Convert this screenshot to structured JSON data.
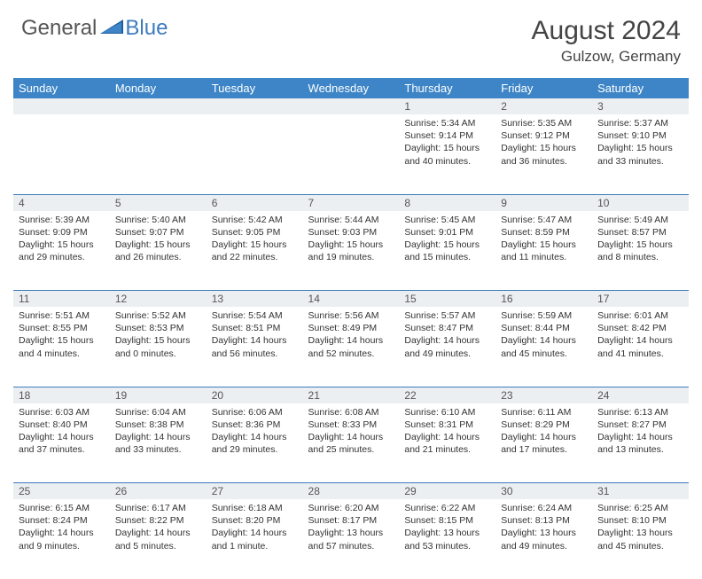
{
  "logo": {
    "general": "General",
    "blue": "Blue"
  },
  "title": "August 2024",
  "location": "Gulzow, Germany",
  "colors": {
    "header_bg": "#3d85c6",
    "header_text": "#ffffff",
    "daynum_bg": "#eceff1",
    "rule": "#3d7bbf",
    "logo_blue": "#3d7bbf",
    "text": "#333333"
  },
  "weekdays": [
    "Sunday",
    "Monday",
    "Tuesday",
    "Wednesday",
    "Thursday",
    "Friday",
    "Saturday"
  ],
  "weeks": [
    {
      "nums": [
        "",
        "",
        "",
        "",
        "1",
        "2",
        "3"
      ],
      "cells": [
        {
          "sunrise": "",
          "sunset": "",
          "daylight": ""
        },
        {
          "sunrise": "",
          "sunset": "",
          "daylight": ""
        },
        {
          "sunrise": "",
          "sunset": "",
          "daylight": ""
        },
        {
          "sunrise": "",
          "sunset": "",
          "daylight": ""
        },
        {
          "sunrise": "Sunrise: 5:34 AM",
          "sunset": "Sunset: 9:14 PM",
          "daylight": "Daylight: 15 hours and 40 minutes."
        },
        {
          "sunrise": "Sunrise: 5:35 AM",
          "sunset": "Sunset: 9:12 PM",
          "daylight": "Daylight: 15 hours and 36 minutes."
        },
        {
          "sunrise": "Sunrise: 5:37 AM",
          "sunset": "Sunset: 9:10 PM",
          "daylight": "Daylight: 15 hours and 33 minutes."
        }
      ]
    },
    {
      "nums": [
        "4",
        "5",
        "6",
        "7",
        "8",
        "9",
        "10"
      ],
      "cells": [
        {
          "sunrise": "Sunrise: 5:39 AM",
          "sunset": "Sunset: 9:09 PM",
          "daylight": "Daylight: 15 hours and 29 minutes."
        },
        {
          "sunrise": "Sunrise: 5:40 AM",
          "sunset": "Sunset: 9:07 PM",
          "daylight": "Daylight: 15 hours and 26 minutes."
        },
        {
          "sunrise": "Sunrise: 5:42 AM",
          "sunset": "Sunset: 9:05 PM",
          "daylight": "Daylight: 15 hours and 22 minutes."
        },
        {
          "sunrise": "Sunrise: 5:44 AM",
          "sunset": "Sunset: 9:03 PM",
          "daylight": "Daylight: 15 hours and 19 minutes."
        },
        {
          "sunrise": "Sunrise: 5:45 AM",
          "sunset": "Sunset: 9:01 PM",
          "daylight": "Daylight: 15 hours and 15 minutes."
        },
        {
          "sunrise": "Sunrise: 5:47 AM",
          "sunset": "Sunset: 8:59 PM",
          "daylight": "Daylight: 15 hours and 11 minutes."
        },
        {
          "sunrise": "Sunrise: 5:49 AM",
          "sunset": "Sunset: 8:57 PM",
          "daylight": "Daylight: 15 hours and 8 minutes."
        }
      ]
    },
    {
      "nums": [
        "11",
        "12",
        "13",
        "14",
        "15",
        "16",
        "17"
      ],
      "cells": [
        {
          "sunrise": "Sunrise: 5:51 AM",
          "sunset": "Sunset: 8:55 PM",
          "daylight": "Daylight: 15 hours and 4 minutes."
        },
        {
          "sunrise": "Sunrise: 5:52 AM",
          "sunset": "Sunset: 8:53 PM",
          "daylight": "Daylight: 15 hours and 0 minutes."
        },
        {
          "sunrise": "Sunrise: 5:54 AM",
          "sunset": "Sunset: 8:51 PM",
          "daylight": "Daylight: 14 hours and 56 minutes."
        },
        {
          "sunrise": "Sunrise: 5:56 AM",
          "sunset": "Sunset: 8:49 PM",
          "daylight": "Daylight: 14 hours and 52 minutes."
        },
        {
          "sunrise": "Sunrise: 5:57 AM",
          "sunset": "Sunset: 8:47 PM",
          "daylight": "Daylight: 14 hours and 49 minutes."
        },
        {
          "sunrise": "Sunrise: 5:59 AM",
          "sunset": "Sunset: 8:44 PM",
          "daylight": "Daylight: 14 hours and 45 minutes."
        },
        {
          "sunrise": "Sunrise: 6:01 AM",
          "sunset": "Sunset: 8:42 PM",
          "daylight": "Daylight: 14 hours and 41 minutes."
        }
      ]
    },
    {
      "nums": [
        "18",
        "19",
        "20",
        "21",
        "22",
        "23",
        "24"
      ],
      "cells": [
        {
          "sunrise": "Sunrise: 6:03 AM",
          "sunset": "Sunset: 8:40 PM",
          "daylight": "Daylight: 14 hours and 37 minutes."
        },
        {
          "sunrise": "Sunrise: 6:04 AM",
          "sunset": "Sunset: 8:38 PM",
          "daylight": "Daylight: 14 hours and 33 minutes."
        },
        {
          "sunrise": "Sunrise: 6:06 AM",
          "sunset": "Sunset: 8:36 PM",
          "daylight": "Daylight: 14 hours and 29 minutes."
        },
        {
          "sunrise": "Sunrise: 6:08 AM",
          "sunset": "Sunset: 8:33 PM",
          "daylight": "Daylight: 14 hours and 25 minutes."
        },
        {
          "sunrise": "Sunrise: 6:10 AM",
          "sunset": "Sunset: 8:31 PM",
          "daylight": "Daylight: 14 hours and 21 minutes."
        },
        {
          "sunrise": "Sunrise: 6:11 AM",
          "sunset": "Sunset: 8:29 PM",
          "daylight": "Daylight: 14 hours and 17 minutes."
        },
        {
          "sunrise": "Sunrise: 6:13 AM",
          "sunset": "Sunset: 8:27 PM",
          "daylight": "Daylight: 14 hours and 13 minutes."
        }
      ]
    },
    {
      "nums": [
        "25",
        "26",
        "27",
        "28",
        "29",
        "30",
        "31"
      ],
      "cells": [
        {
          "sunrise": "Sunrise: 6:15 AM",
          "sunset": "Sunset: 8:24 PM",
          "daylight": "Daylight: 14 hours and 9 minutes."
        },
        {
          "sunrise": "Sunrise: 6:17 AM",
          "sunset": "Sunset: 8:22 PM",
          "daylight": "Daylight: 14 hours and 5 minutes."
        },
        {
          "sunrise": "Sunrise: 6:18 AM",
          "sunset": "Sunset: 8:20 PM",
          "daylight": "Daylight: 14 hours and 1 minute."
        },
        {
          "sunrise": "Sunrise: 6:20 AM",
          "sunset": "Sunset: 8:17 PM",
          "daylight": "Daylight: 13 hours and 57 minutes."
        },
        {
          "sunrise": "Sunrise: 6:22 AM",
          "sunset": "Sunset: 8:15 PM",
          "daylight": "Daylight: 13 hours and 53 minutes."
        },
        {
          "sunrise": "Sunrise: 6:24 AM",
          "sunset": "Sunset: 8:13 PM",
          "daylight": "Daylight: 13 hours and 49 minutes."
        },
        {
          "sunrise": "Sunrise: 6:25 AM",
          "sunset": "Sunset: 8:10 PM",
          "daylight": "Daylight: 13 hours and 45 minutes."
        }
      ]
    }
  ]
}
